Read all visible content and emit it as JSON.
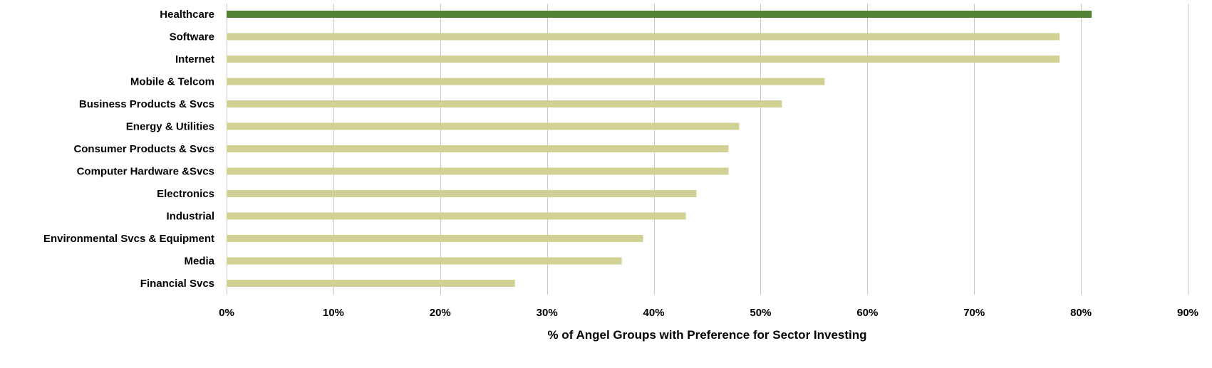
{
  "chart_data": {
    "type": "bar",
    "orientation": "horizontal",
    "categories": [
      "Healthcare",
      "Software",
      "Internet",
      "Mobile & Telcom",
      "Business Products & Svcs",
      "Energy & Utilities",
      "Consumer Products & Svcs",
      "Computer Hardware &Svcs",
      "Electronics",
      "Industrial",
      "Environmental Svcs & Equipment",
      "Media",
      "Financial Svcs"
    ],
    "values": [
      81,
      78,
      78,
      56,
      52,
      48,
      47,
      47,
      44,
      43,
      39,
      37,
      27
    ],
    "highlight_index": 0,
    "colors": {
      "highlight": "#548235",
      "bar": "#d1d195",
      "grid": "#c8c8c8"
    },
    "xlabel": "% of Angel Groups with Preference for Sector Investing",
    "ylabel": "",
    "xlim": [
      0,
      90
    ],
    "xticks": [
      0,
      10,
      20,
      30,
      40,
      50,
      60,
      70,
      80,
      90
    ],
    "xtick_labels": [
      "0%",
      "10%",
      "20%",
      "30%",
      "40%",
      "50%",
      "60%",
      "70%",
      "80%",
      "90%"
    ],
    "grid": "vertical",
    "legend": "none"
  }
}
